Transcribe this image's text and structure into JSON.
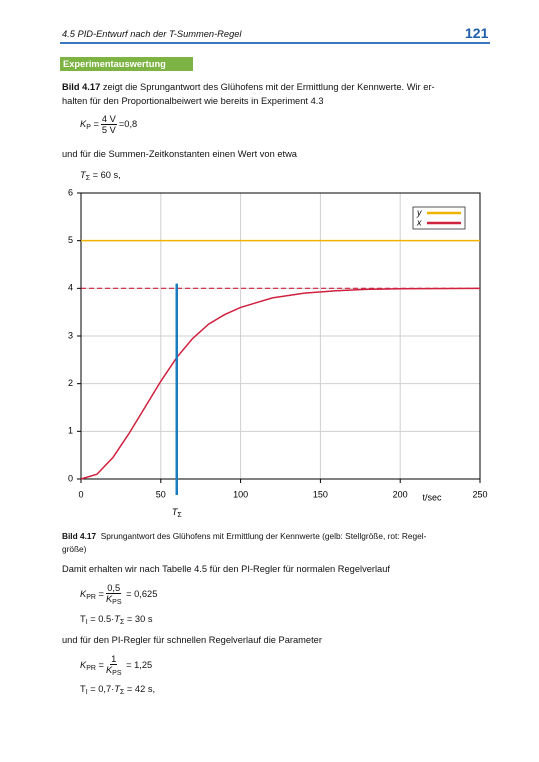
{
  "header": {
    "section": "4.5  PID-Entwurf nach der T-Summen-Regel",
    "page": "121"
  },
  "section_label": "Experimentauswertung",
  "intro": {
    "ref": "Bild 4.17",
    "lines": [
      "zeigt die Sprungantwort des Glühofens mit der Ermittlung der Kennwerte. Wir er-",
      "halten für den Proportionalbeiwert wie bereits in Experiment 4.3"
    ]
  },
  "formula_kp": {
    "symbol": "K",
    "sub": "P",
    "eq": "=",
    "num": "4 V",
    "den": "5 V",
    "result": "=0,8"
  },
  "text_2": "und für die Summen-Zeitkonstanten einen Wert von etwa",
  "formula_tsum": {
    "symbol": "T",
    "sub": "Σ",
    "rest": "= 60 s,"
  },
  "chart_data": {
    "type": "line",
    "x_label": "t/sec",
    "xlim": [
      0,
      250
    ],
    "ylim": [
      0,
      6
    ],
    "xticks": [
      0,
      50,
      100,
      150,
      200,
      250
    ],
    "yticks": [
      0,
      1,
      2,
      3,
      4,
      5,
      6
    ],
    "grid": true,
    "legend": "upper right",
    "series": [
      {
        "name": "y",
        "color": "#f0b400",
        "x": [
          0,
          250
        ],
        "values": [
          5,
          5
        ]
      },
      {
        "name": "x",
        "color": "#d0213f",
        "x": [
          0,
          10,
          20,
          30,
          40,
          50,
          60,
          70,
          80,
          90,
          100,
          120,
          140,
          160,
          180,
          200,
          250
        ],
        "values": [
          0,
          0.1,
          0.45,
          0.95,
          1.5,
          2.05,
          2.55,
          2.95,
          3.25,
          3.45,
          3.6,
          3.8,
          3.9,
          3.95,
          3.98,
          3.99,
          4.0
        ]
      }
    ],
    "reference_line": {
      "value": 4,
      "color": "#d0213f"
    },
    "marker": {
      "value": 60,
      "top": 4.1,
      "color": "#1a7bbf",
      "label": "T",
      "label_sub": "Σ"
    }
  },
  "caption": {
    "ref": "Bild 4.17",
    "lines": [
      "Sprungantwort des Glühofens mit Ermittlung der Kennwerte (gelb: Stellgröße, rot: Regel-",
      "größe)"
    ]
  },
  "text_3": "Damit erhalten wir nach Tabelle 4.5 für den PI-Regler für normalen Regelverlauf",
  "formula_kpr1": {
    "symbol": "K",
    "sub": "PR",
    "eq": "=",
    "num": "0,5",
    "den_symbol": "K",
    "den_sub": "PS",
    "result": "= 0,625"
  },
  "formula_ti1": {
    "symbol": "T",
    "sub": "I",
    "mid": "= 0.5·",
    "t": "T",
    "t_sub": "Σ",
    "result": "= 30 s"
  },
  "text_4": "und für den PI-Regler für schnellen Regelverlauf die Parameter",
  "formula_kpr2": {
    "symbol": "K",
    "sub": "PR",
    "eq": "=",
    "num": "1",
    "den_symbol": "K",
    "den_sub": "PS",
    "result": "= 1,25"
  },
  "formula_ti2": {
    "symbol": "T",
    "sub": "I",
    "mid": "= 0,7·",
    "t": "T",
    "t_sub": "Σ",
    "result": "= 42 s,"
  }
}
